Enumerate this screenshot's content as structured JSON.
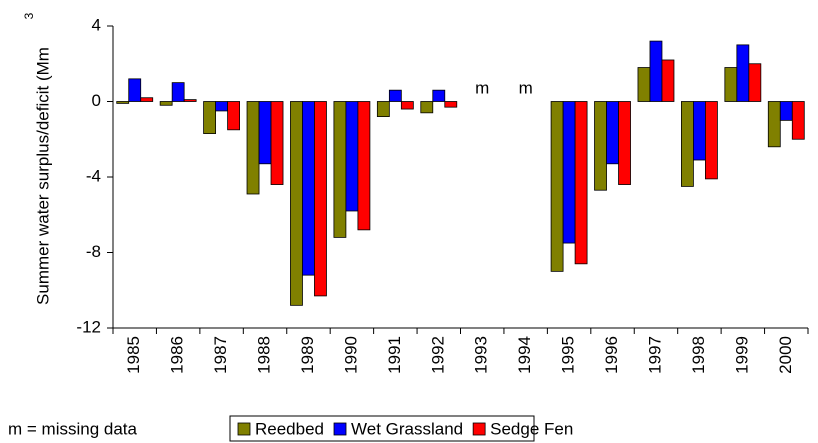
{
  "chart_data": {
    "type": "bar",
    "ylabel": "Summer water surplus/deficit (Mm",
    "ylabel_superscript": "3",
    "categories": [
      "1985",
      "1986",
      "1987",
      "1988",
      "1989",
      "1990",
      "1991",
      "1992",
      "1993",
      "1994",
      "1995",
      "1996",
      "1997",
      "1998",
      "1999",
      "2000"
    ],
    "series": [
      {
        "name": "Reedbed",
        "color": "#808000",
        "values": [
          -0.1,
          -0.2,
          -1.7,
          -4.9,
          -10.8,
          -7.2,
          -0.8,
          -0.6,
          null,
          null,
          -9.0,
          -4.7,
          1.8,
          -4.5,
          1.8,
          -2.4
        ]
      },
      {
        "name": "Wet Grassland",
        "color": "#0000ff",
        "values": [
          1.2,
          1.0,
          -0.5,
          -3.3,
          -9.2,
          -5.8,
          0.6,
          0.6,
          null,
          null,
          -7.5,
          -3.3,
          3.2,
          -3.1,
          3.0,
          -1.0
        ]
      },
      {
        "name": "Sedge Fen",
        "color": "#ff0000",
        "values": [
          0.2,
          0.1,
          -1.5,
          -4.4,
          -10.3,
          -6.8,
          -0.4,
          -0.3,
          null,
          null,
          -8.6,
          -4.4,
          2.2,
          -4.1,
          2.0,
          -2.0
        ]
      }
    ],
    "ylim": [
      -12,
      4
    ],
    "yticks": [
      -12,
      -8,
      -4,
      0,
      4
    ],
    "annotations": [
      {
        "text": "m",
        "x": "1993"
      },
      {
        "text": "m",
        "x": "1994"
      }
    ],
    "footnote": "m = missing data",
    "legend": "bottom"
  }
}
